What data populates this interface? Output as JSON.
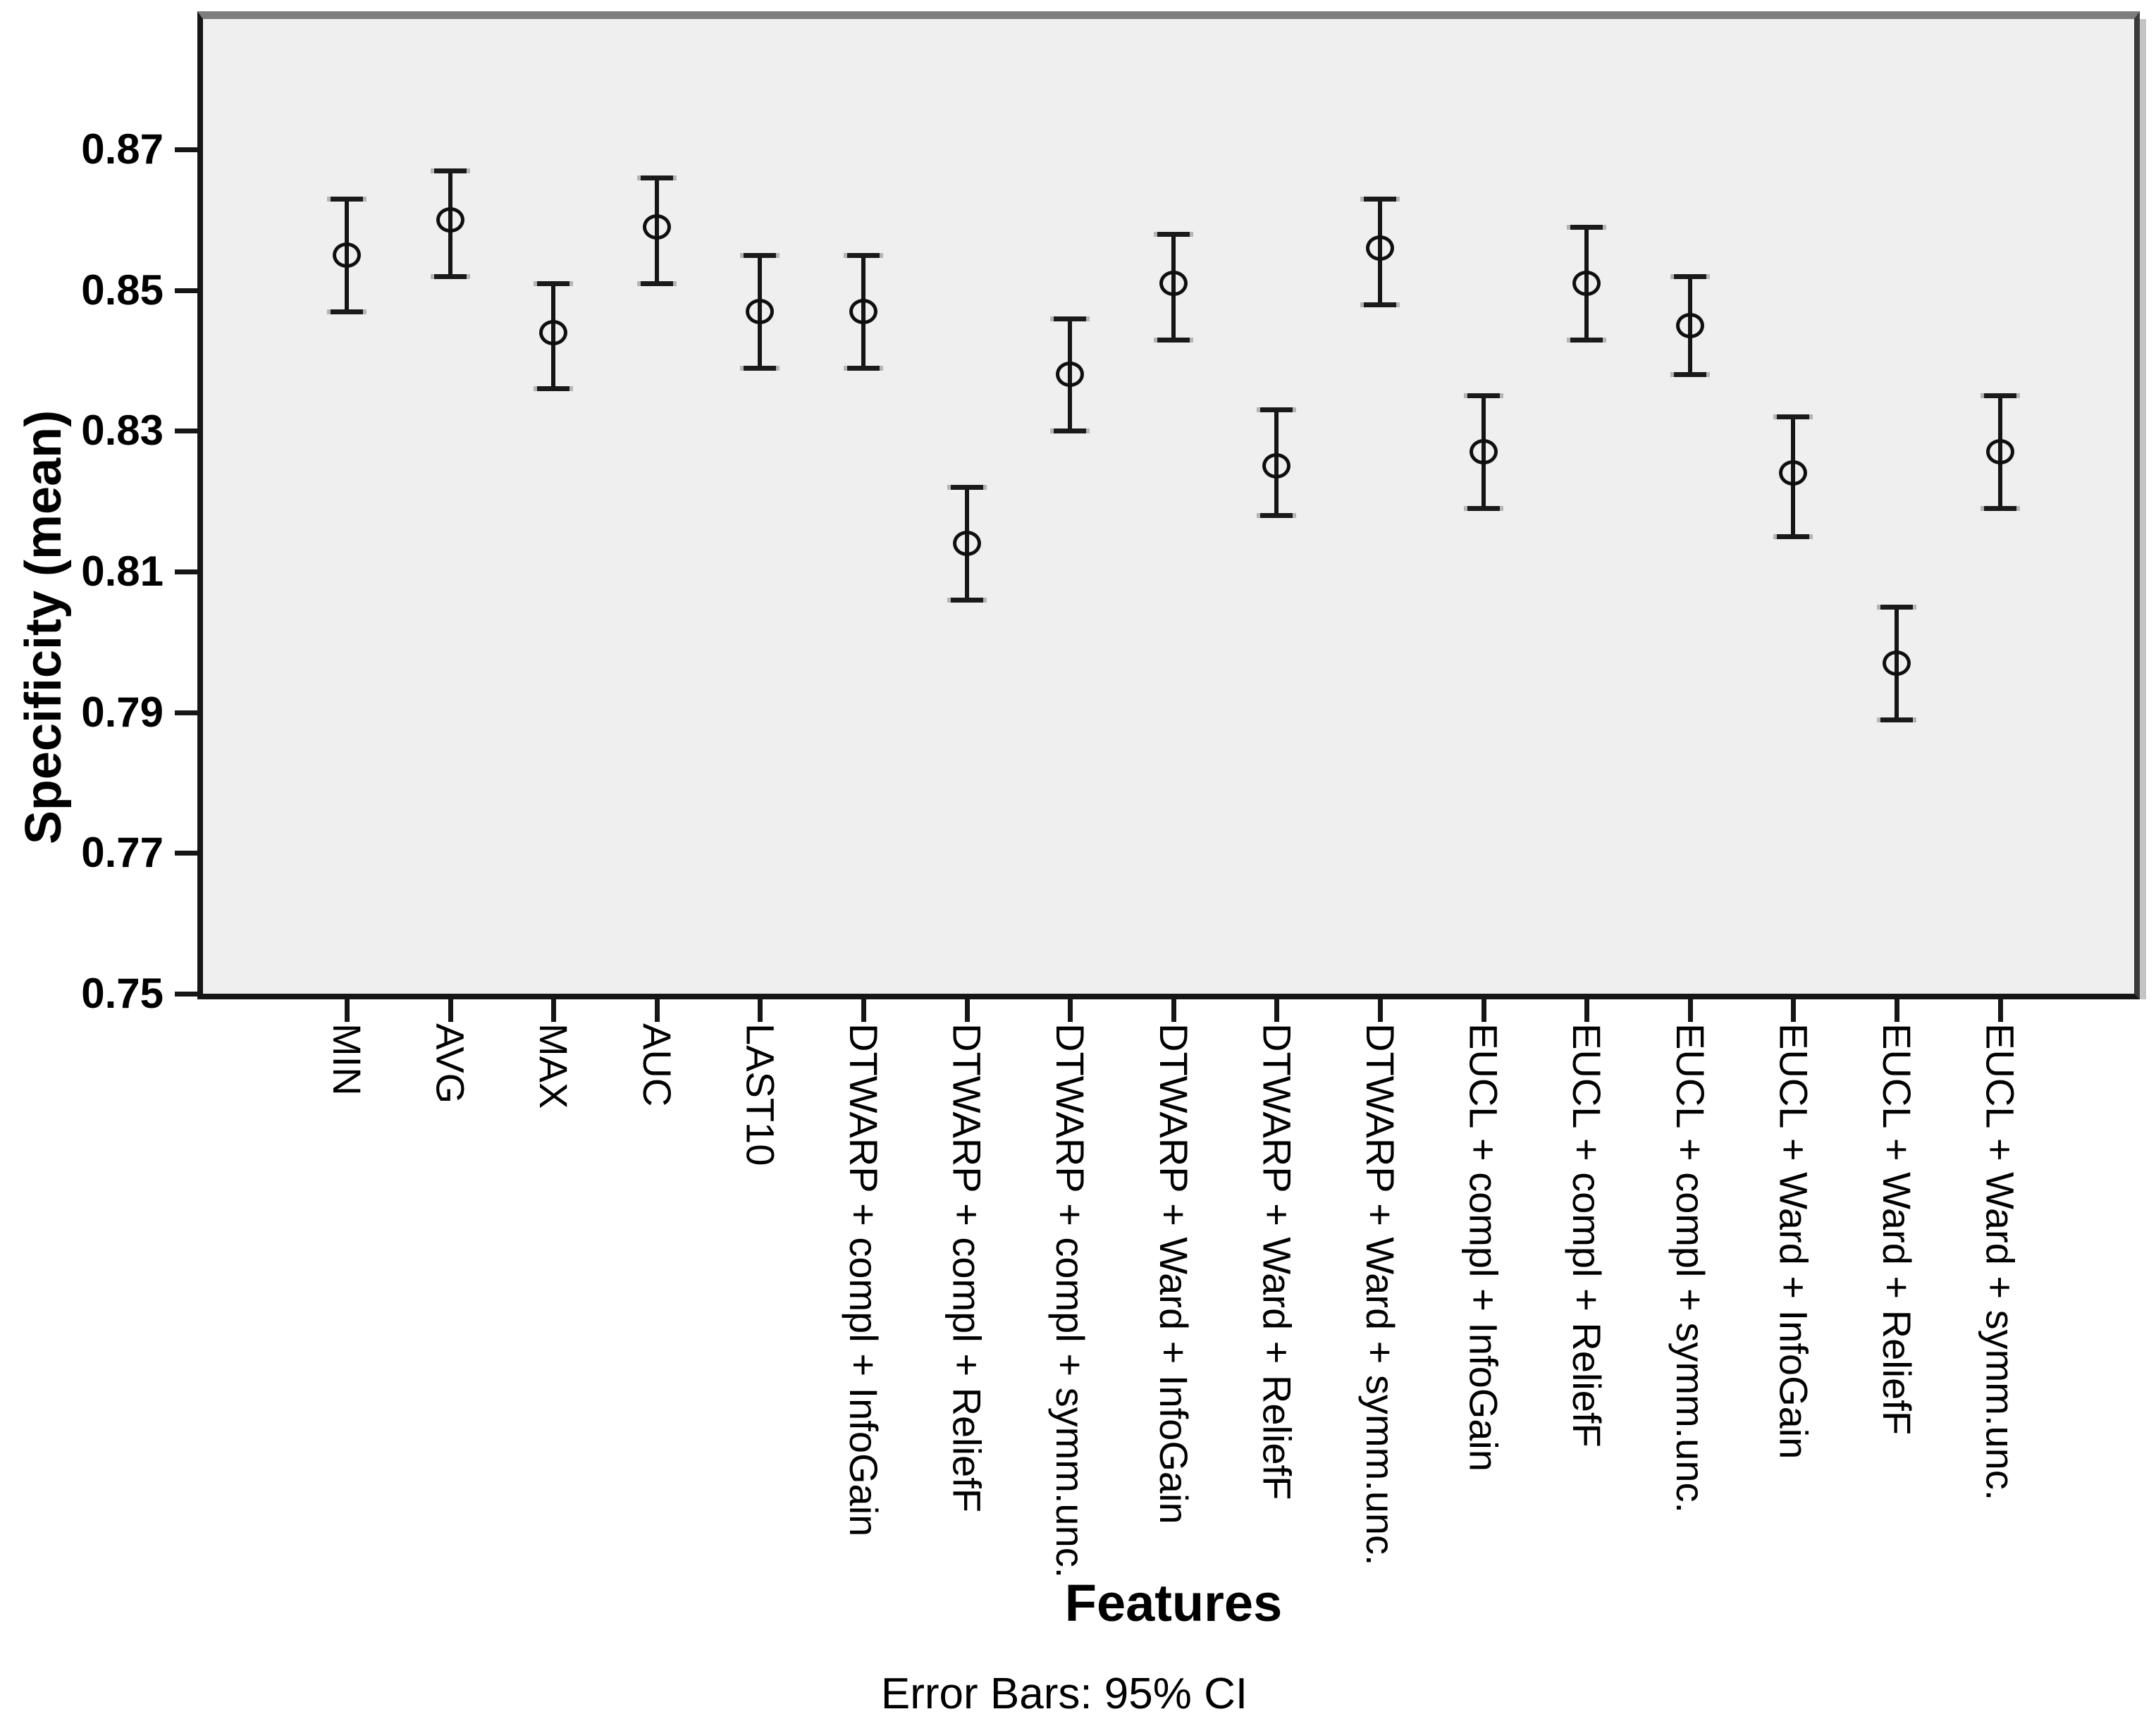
{
  "chart_data": {
    "type": "errorbar",
    "title": "",
    "xlabel": "Features",
    "ylabel": "Specificity (mean)",
    "caption": "Error Bars: 95% CI",
    "ci_level": "95% CI",
    "marker": "open-circle",
    "grid": false,
    "legend": "none",
    "ylim": [
      0.75,
      0.888
    ],
    "yticks": [
      0.75,
      0.77,
      0.79,
      0.81,
      0.83,
      0.85,
      0.87
    ],
    "ytick_labels": [
      "0.75",
      "0.77",
      "0.79",
      "0.81",
      "0.83",
      "0.85",
      "0.87"
    ],
    "categories": [
      "MIN",
      "AVG",
      "MAX",
      "AUC",
      "LAST10",
      "DTWARP + compl + InfoGain",
      "DTWARP + compl + ReliefF",
      "DTWARP + compl + symm.unc.",
      "DTWARP + Ward + InfoGain",
      "DTWARP + Ward + ReliefF",
      "DTWARP + Ward + symm.unc.",
      "EUCL + compl + InfoGain",
      "EUCL + compl + ReliefF",
      "EUCL + compl + symm.unc.",
      "EUCL + Ward + InfoGain",
      "EUCL + Ward + ReliefF",
      "EUCL + Ward + symm.unc."
    ],
    "series": [
      {
        "name": "Specificity (mean)",
        "means": [
          0.855,
          0.86,
          0.844,
          0.859,
          0.847,
          0.847,
          0.814,
          0.838,
          0.851,
          0.825,
          0.856,
          0.827,
          0.851,
          0.845,
          0.824,
          0.797,
          0.827
        ],
        "ci_low": [
          0.847,
          0.852,
          0.836,
          0.851,
          0.839,
          0.839,
          0.806,
          0.83,
          0.843,
          0.818,
          0.848,
          0.819,
          0.843,
          0.838,
          0.815,
          0.789,
          0.819
        ],
        "ci_high": [
          0.863,
          0.867,
          0.851,
          0.866,
          0.855,
          0.855,
          0.822,
          0.846,
          0.858,
          0.833,
          0.863,
          0.835,
          0.859,
          0.852,
          0.832,
          0.805,
          0.835
        ]
      }
    ]
  },
  "colors": {
    "page_bg": "#ffffff",
    "plot_bg": "#efefef",
    "line": "#151515",
    "frame_dark": "#161616",
    "frame_top": "#7d7d7d",
    "frame_right": "#3a3a3a",
    "frame_shadow": "#c4c4c4",
    "text": "#000000"
  }
}
